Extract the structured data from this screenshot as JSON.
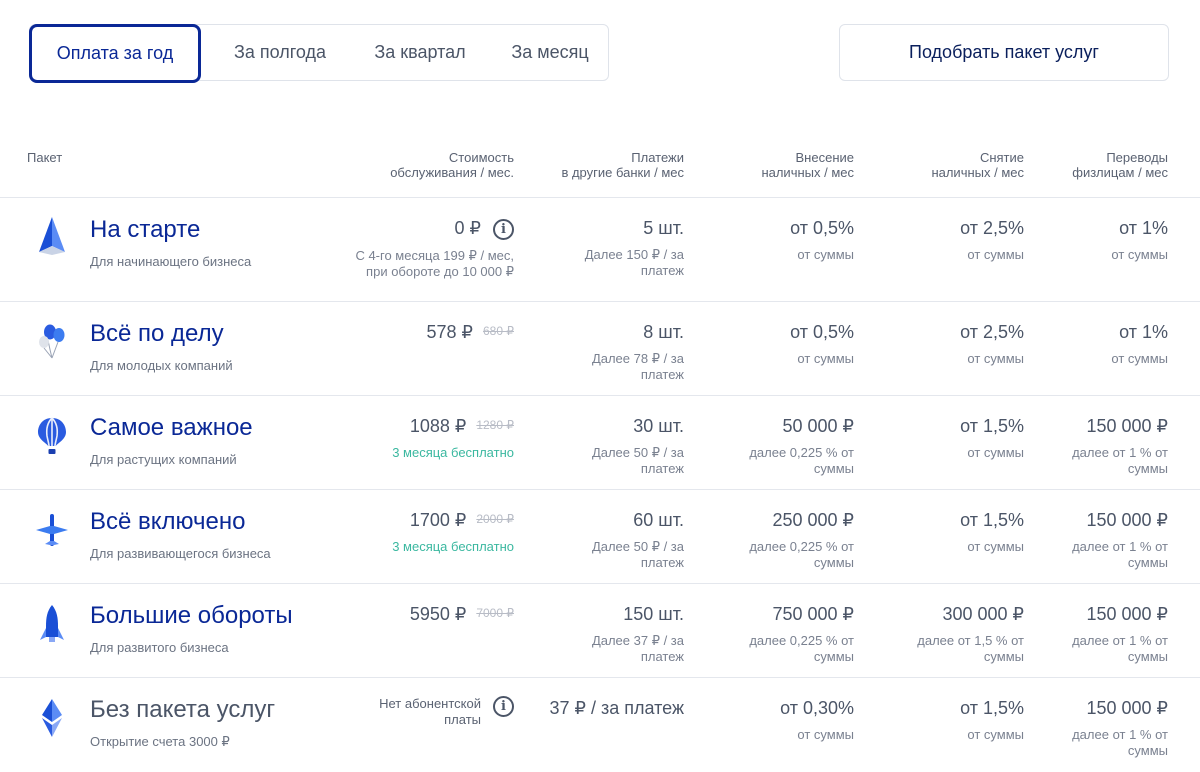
{
  "tabs": [
    "Оплата за год",
    "За полгода",
    "За квартал",
    "За месяц"
  ],
  "pick_button": "Подобрать пакет услуг",
  "headers": {
    "package": "Пакет",
    "cost": [
      "Стоимость",
      "обслуживания / мес."
    ],
    "payments": [
      "Платежи",
      "в другие банки / мес"
    ],
    "deposit": [
      "Внесение",
      "наличных / мес"
    ],
    "withdraw": [
      "Снятие",
      "наличных / мес"
    ],
    "transfers": [
      "Переводы",
      "физлицам / мес"
    ]
  },
  "rows": [
    {
      "icon": "paper-plane-icon",
      "name": "На старте",
      "sub": "Для начинающего бизнеса",
      "price": "0 ₽",
      "old_price": "",
      "price_note": [
        "С 4-го месяца 199 ₽ / мес,",
        "при обороте до 10 000 ₽"
      ],
      "payments": "5 шт.",
      "payments_note": [
        "Далее 150 ₽ / за",
        "платеж"
      ],
      "deposit": "от 0,5%",
      "deposit_note": [
        "от суммы"
      ],
      "withdraw": "от 2,5%",
      "withdraw_note": [
        "от суммы"
      ],
      "transfers": "от 1%",
      "transfers_note": [
        "от суммы"
      ]
    },
    {
      "icon": "balloons-icon",
      "name": "Всё по делу",
      "sub": "Для молодых компаний",
      "price": "578 ₽",
      "old_price": "680 ₽",
      "price_note": [],
      "payments": "8 шт.",
      "payments_note": [
        "Далее 78 ₽ / за",
        "платеж"
      ],
      "deposit": "от 0,5%",
      "deposit_note": [
        "от суммы"
      ],
      "withdraw": "от 2,5%",
      "withdraw_note": [
        "от суммы"
      ],
      "transfers": "от 1%",
      "transfers_note": [
        "от суммы"
      ]
    },
    {
      "icon": "hot-air-balloon-icon",
      "name": "Самое важное",
      "sub": "Для растущих компаний",
      "price": "1088 ₽",
      "old_price": "1280 ₽",
      "price_note": [
        "3 месяца бесплатно"
      ],
      "payments": "30 шт.",
      "payments_note": [
        "Далее 50 ₽ / за",
        "платеж"
      ],
      "deposit": "50 000 ₽",
      "deposit_note": [
        "далее 0,225 % от",
        "суммы"
      ],
      "withdraw": "от 1,5%",
      "withdraw_note": [
        "от суммы"
      ],
      "transfers": "150 000 ₽",
      "transfers_note": [
        "далее от 1 % от",
        "суммы"
      ]
    },
    {
      "icon": "airplane-icon",
      "name": "Всё включено",
      "sub": "Для развивающегося бизнеса",
      "price": "1700 ₽",
      "old_price": "2000 ₽",
      "price_note": [
        "3 месяца бесплатно"
      ],
      "payments": "60 шт.",
      "payments_note": [
        "Далее 50 ₽ / за",
        "платеж"
      ],
      "deposit": "250 000 ₽",
      "deposit_note": [
        "далее 0,225 % от",
        "суммы"
      ],
      "withdraw": "от 1,5%",
      "withdraw_note": [
        "от суммы"
      ],
      "transfers": "150 000 ₽",
      "transfers_note": [
        "далее от 1 % от",
        "суммы"
      ]
    },
    {
      "icon": "rocket-icon",
      "name": "Большие обороты",
      "sub": "Для развитого бизнеса",
      "price": "5950 ₽",
      "old_price": "7000 ₽",
      "price_note": [],
      "payments": "150 шт.",
      "payments_note": [
        "Далее 37 ₽ / за",
        "платеж"
      ],
      "deposit": "750 000 ₽",
      "deposit_note": [
        "далее 0,225 % от",
        "суммы"
      ],
      "withdraw": "300 000 ₽",
      "withdraw_note": [
        "далее от 1,5 % от",
        "суммы"
      ],
      "transfers": "150 000 ₽",
      "transfers_note": [
        "далее от 1 % от",
        "суммы"
      ]
    },
    {
      "icon": "crystal-icon",
      "name": "Без пакета услуг",
      "sub": "Открытие счета 3000 ₽",
      "price": "",
      "old_price": "",
      "price_text": [
        "Нет абонентской",
        "платы"
      ],
      "price_note": [],
      "payments": "37 ₽ / за платеж",
      "payments_note": [],
      "deposit": "от 0,30%",
      "deposit_note": [
        "от суммы"
      ],
      "withdraw": "от 1,5%",
      "withdraw_note": [
        "от суммы"
      ],
      "transfers": "150 000 ₽",
      "transfers_note": [
        "далее от 1 % от",
        "суммы"
      ]
    }
  ],
  "colors": {
    "accent": "#0a2896",
    "green": "#3bb8a0"
  }
}
